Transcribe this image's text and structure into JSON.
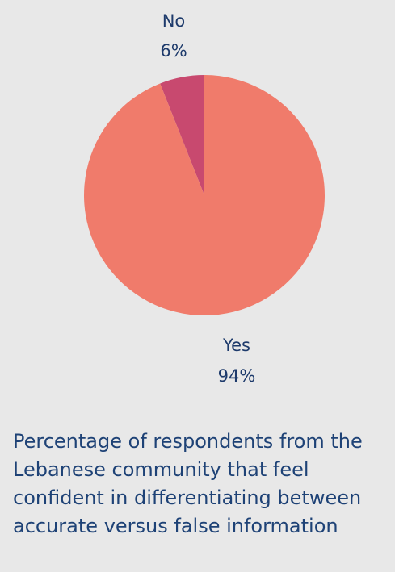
{
  "chart_data": {
    "type": "pie",
    "categories": [
      "No",
      "Yes"
    ],
    "values": [
      6,
      94
    ],
    "value_labels": [
      "6%",
      "94%"
    ],
    "colors": [
      "#c8496f",
      "#f07b6b"
    ],
    "title": "",
    "start_angle": "top, counterclockwise for No",
    "legend": "none"
  },
  "caption": "Percentage of respondents from the Lebanese community that feel confident in differentiating between accurate versus false information"
}
